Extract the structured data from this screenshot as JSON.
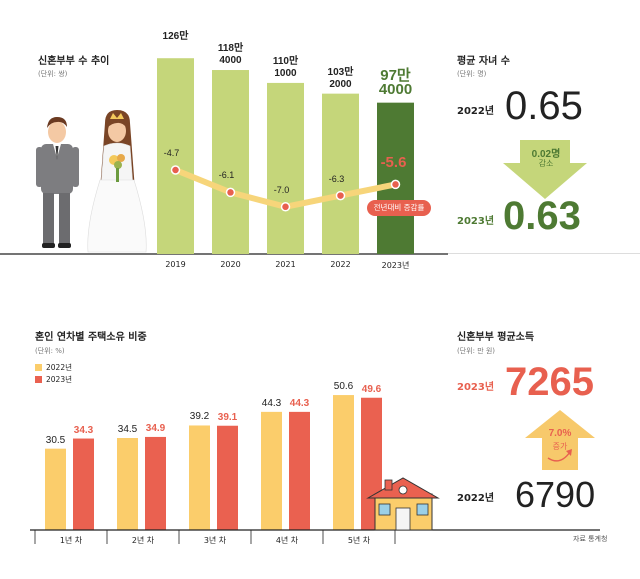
{
  "top_chart": {
    "title": "신혼부부 수 추이",
    "unit": "(단위: 쌍)",
    "bars": [
      {
        "year": "2019",
        "label_line1": "126만",
        "label_line2": ""
      },
      {
        "year": "2020",
        "label_line1": "118만",
        "label_line2": "4000"
      },
      {
        "year": "2021",
        "label_line1": "110만",
        "label_line2": "1000"
      },
      {
        "year": "2022",
        "label_line1": "103만",
        "label_line2": "2000"
      },
      {
        "year": "2023년",
        "label_line1": "97만",
        "label_line2": "4000"
      }
    ],
    "rate_labels": [
      "-4.7",
      "-6.1",
      "-7.0",
      "-6.3",
      "-5.6"
    ],
    "rate_badge": "전년대비 증감률"
  },
  "children": {
    "title": "평균 자녀 수",
    "unit": "(단위: 명)",
    "y2022_label": "2022년",
    "y2022_value": "0.65",
    "diff_value": "0.02명",
    "diff_text": "감소",
    "y2023_label": "2023년",
    "y2023_value": "0.63"
  },
  "bottom_chart": {
    "title": "혼인 연차별 주택소유 비중",
    "unit": "(단위: %)",
    "legend_2022": "2022년",
    "legend_2023": "2023년",
    "groups": [
      {
        "label": "1년 차",
        "v2022": "30.5",
        "v2023": "34.3"
      },
      {
        "label": "2년 차",
        "v2022": "34.5",
        "v2023": "34.9"
      },
      {
        "label": "3년 차",
        "v2022": "39.2",
        "v2023": "39.1"
      },
      {
        "label": "4년 차",
        "v2022": "44.3",
        "v2023": "44.3"
      },
      {
        "label": "5년 차",
        "v2022": "50.6",
        "v2023": "49.6"
      }
    ]
  },
  "income": {
    "title": "신혼부부 평균소득",
    "unit": "(단위: 만 원)",
    "y2023_label": "2023년",
    "y2023_value": "7265",
    "diff_value": "7.0%",
    "diff_text": "증가",
    "y2022_label": "2022년",
    "y2022_value": "6790"
  },
  "source": "자료 통계청",
  "colors": {
    "bar_light_green": "#c5d67a",
    "bar_dark_green": "#4e7a33",
    "line_yellow": "#f7d57a",
    "dot_red": "#e8604f",
    "bar_2022": "#fbcd6b",
    "bar_2023": "#ea6150",
    "red_text": "#e8604f",
    "green_text": "#4e7a33"
  },
  "chart_data": [
    {
      "type": "bar",
      "title": "신혼부부 수 추이",
      "categories": [
        "2019",
        "2020",
        "2021",
        "2022",
        "2023년"
      ],
      "series": [
        {
          "values": [
            1260000,
            1184000,
            1101000,
            1032000,
            974000
          ]
        },
        {
          "name": "전년대비 증감률",
          "values": [
            -4.7,
            -6.1,
            -7.0,
            -6.3,
            -5.6
          ]
        }
      ]
    },
    {
      "type": "bar",
      "title": "혼인 연차별 주택소유 비중",
      "categories": [
        "1년 차",
        "2년 차",
        "3년 차",
        "4년 차",
        "5년 차"
      ],
      "series": [
        {
          "name": "2022년",
          "values": [
            30.5,
            34.5,
            39.2,
            44.3,
            50.6
          ]
        },
        {
          "name": "2023년",
          "values": [
            34.3,
            34.9,
            39.1,
            44.3,
            49.6
          ]
        }
      ]
    }
  ]
}
